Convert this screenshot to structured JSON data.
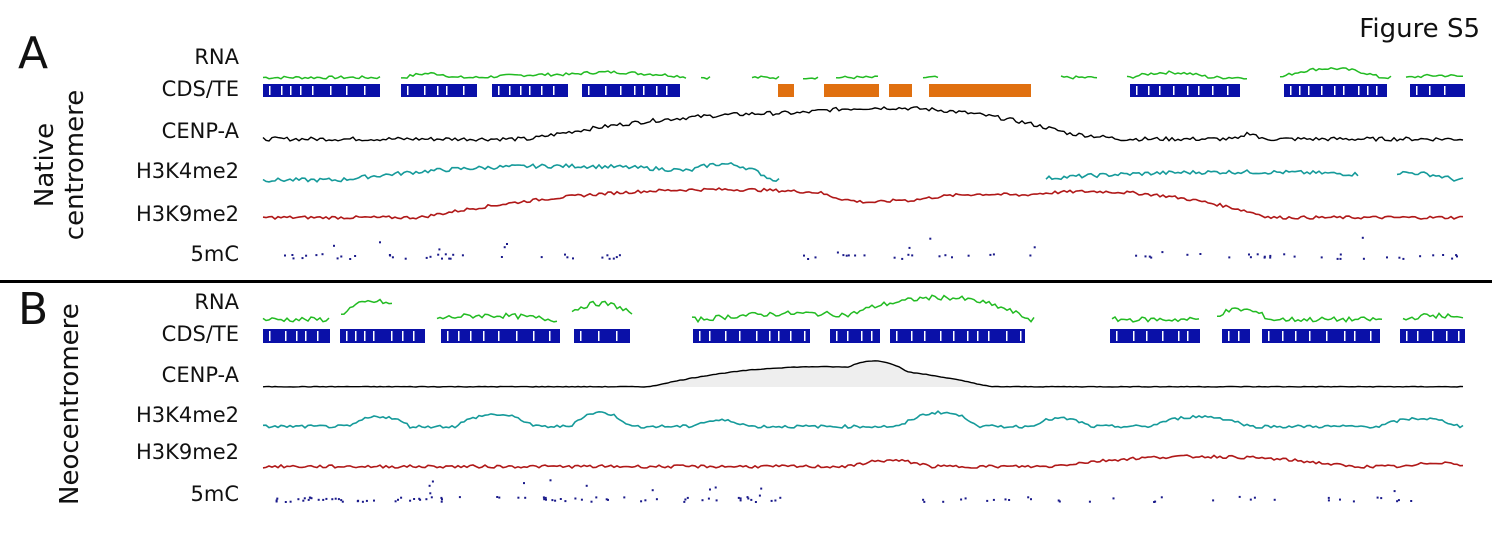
{
  "figure_label": "Figure S5",
  "colors": {
    "rna": "#22bb22",
    "cds": "#0a10a8",
    "te": "#e07010",
    "cenpa": "#000000",
    "h3k4me2": "#159a9a",
    "h3k9me2": "#b01818",
    "mc5": "#1a1a8a"
  },
  "panels": [
    {
      "letter": "A",
      "side_label": [
        "Native",
        "centromere"
      ],
      "tracks": [
        "RNA",
        "CDS/TE",
        "CENP-A",
        "H3K4me2",
        "H3K9me2",
        "5mC"
      ]
    },
    {
      "letter": "B",
      "side_label": [
        "Neocentromere"
      ],
      "tracks": [
        "RNA",
        "CDS/TE",
        "CENP-A",
        "H3K4me2",
        "H3K9me2",
        "5mC"
      ]
    }
  ]
}
